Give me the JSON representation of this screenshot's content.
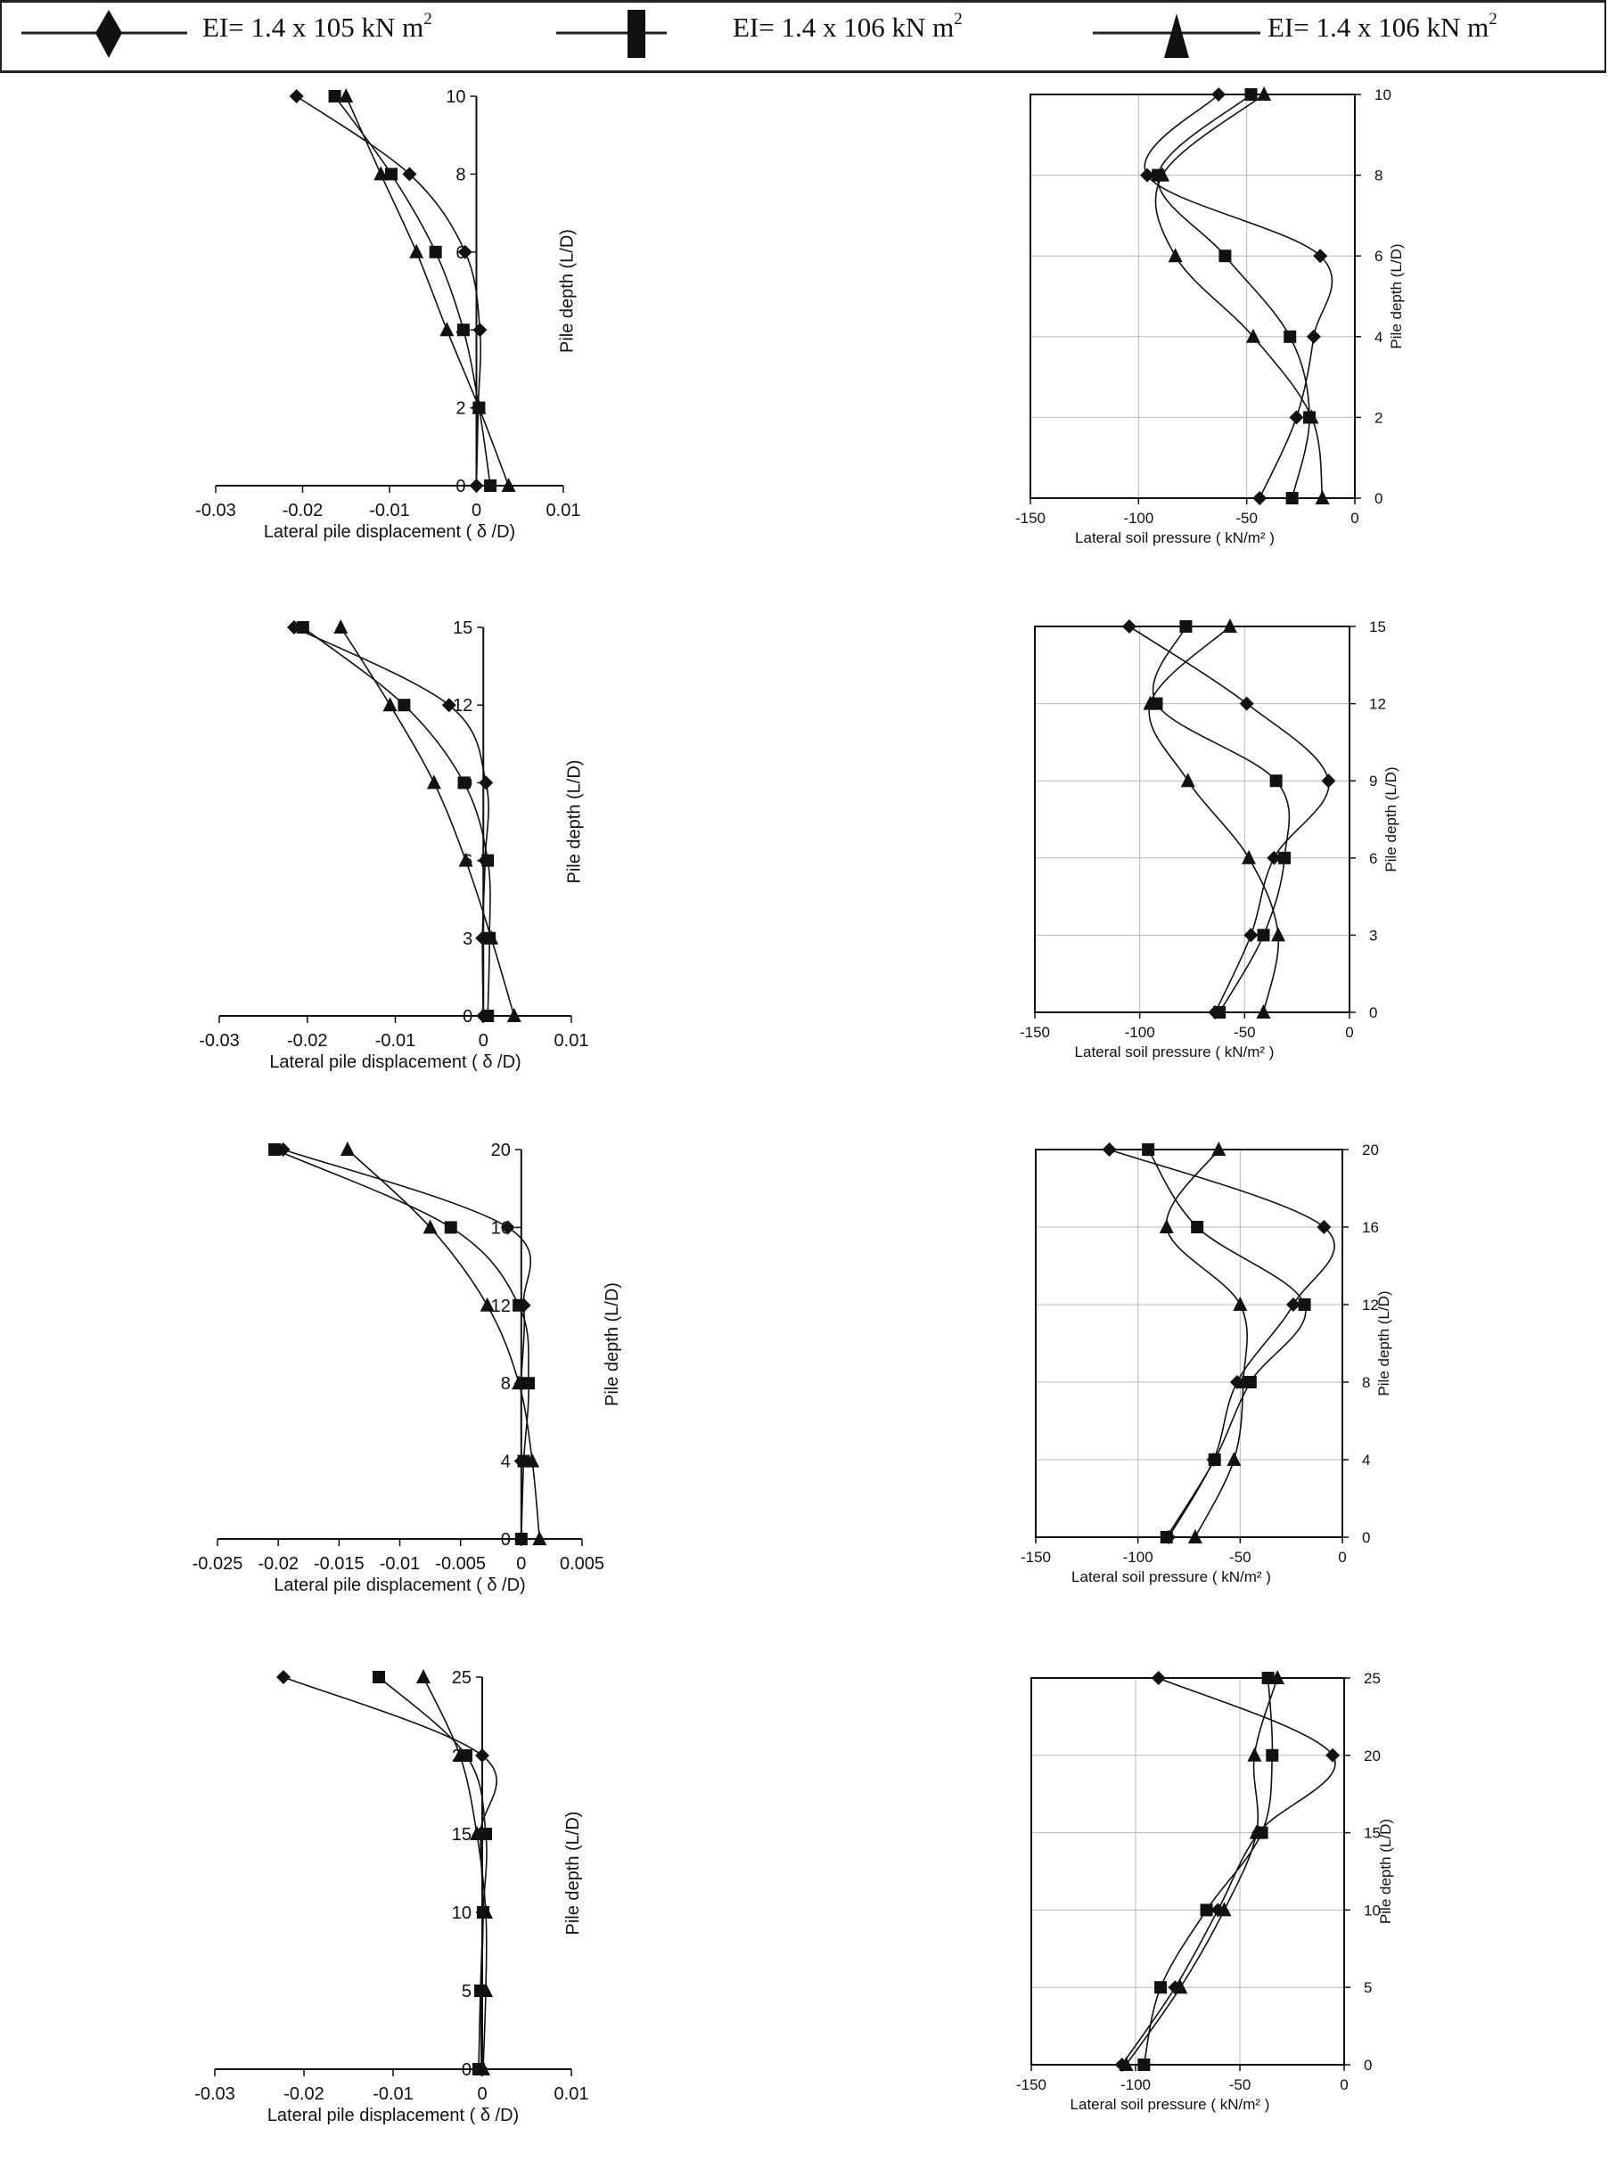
{
  "legend": {
    "items": [
      {
        "marker": "diamond",
        "label": "EI= 1.4 x 105 kN m",
        "sup": "2"
      },
      {
        "marker": "square",
        "label": "EI= 1.4 x 106 kN m",
        "sup": "2"
      },
      {
        "marker": "triangle",
        "label": "EI= 1.4 x 106 kN m",
        "sup": "2"
      }
    ]
  },
  "colors": {
    "line": "#111111",
    "grid": "#b8b8b8"
  },
  "chart_data": [
    {
      "type": "line",
      "xlabel": "Lateral pile displacement ( δ /D)",
      "ylabel": "Pile depth (L/D)",
      "xlim": [
        -0.03,
        0.01
      ],
      "ylim": [
        0,
        10
      ],
      "grid": false,
      "xticks": [
        "-0.03",
        "-0.02",
        "-0.01",
        "0",
        "0.01"
      ],
      "yticks": [
        "0",
        "2",
        "4",
        "6",
        "8",
        "10"
      ],
      "series": [
        {
          "name": "EI= 1.4 x 105 kN m2",
          "marker": "diamond",
          "points": [
            [
              -0.0207,
              10
            ],
            [
              -0.0077,
              8
            ],
            [
              -0.0013,
              6
            ],
            [
              0.0004,
              4
            ],
            [
              0.0002,
              2
            ],
            [
              0,
              0
            ]
          ]
        },
        {
          "name": "EI= 1.4 x 106 kN m2",
          "marker": "square",
          "points": [
            [
              -0.0163,
              10
            ],
            [
              -0.0098,
              8
            ],
            [
              -0.0047,
              6
            ],
            [
              -0.0015,
              4
            ],
            [
              0.0003,
              2
            ],
            [
              0.0016,
              0
            ]
          ]
        },
        {
          "name": "EI= 1.4 x 106 kN m2",
          "marker": "triangle",
          "points": [
            [
              -0.015,
              10
            ],
            [
              -0.011,
              8
            ],
            [
              -0.0069,
              6
            ],
            [
              -0.0034,
              4
            ],
            [
              0.0003,
              2
            ],
            [
              0.0037,
              0
            ]
          ]
        }
      ]
    },
    {
      "type": "line",
      "xlabel": "Lateral soil pressure ( kN/m² )",
      "ylabel": "Pile depth (L/D)",
      "xlim": [
        -150,
        0
      ],
      "ylim": [
        0,
        10
      ],
      "grid": true,
      "xticks": [
        "-150",
        "-100",
        "-50",
        "0"
      ],
      "yticks": [
        "0",
        "2",
        "4",
        "6",
        "8",
        "10"
      ],
      "series": [
        {
          "name": "EI= 1.4 x 105 kN m2",
          "marker": "diamond",
          "points": [
            [
              -63,
              10
            ],
            [
              -96,
              8
            ],
            [
              -16,
              6
            ],
            [
              -19,
              4
            ],
            [
              -27,
              2
            ],
            [
              -44,
              0
            ]
          ]
        },
        {
          "name": "EI= 1.4 x 106 kN m2",
          "marker": "square",
          "points": [
            [
              -48,
              10
            ],
            [
              -91,
              8
            ],
            [
              -60,
              6
            ],
            [
              -30,
              4
            ],
            [
              -21,
              2
            ],
            [
              -29,
              0
            ]
          ]
        },
        {
          "name": "EI= 1.4 x 106 kN m2",
          "marker": "triangle",
          "points": [
            [
              -42,
              10
            ],
            [
              -89,
              8
            ],
            [
              -83,
              6
            ],
            [
              -47,
              4
            ],
            [
              -20,
              2
            ],
            [
              -15,
              0
            ]
          ]
        }
      ]
    },
    {
      "type": "line",
      "xlabel": "Lateral pile displacement ( δ /D)",
      "ylabel": "Pile depth (L/D)",
      "xlim": [
        -0.03,
        0.01
      ],
      "ylim": [
        0,
        15
      ],
      "grid": false,
      "xticks": [
        "-0.03",
        "-0.02",
        "-0.01",
        "0",
        "0.01"
      ],
      "yticks": [
        "0",
        "3",
        "6",
        "9",
        "12",
        "15"
      ],
      "series": [
        {
          "name": "EI= 1.4 x 105 kN m2",
          "marker": "diamond",
          "points": [
            [
              -0.0215,
              15
            ],
            [
              -0.0039,
              12
            ],
            [
              0.0003,
              9
            ],
            [
              0.0002,
              6
            ],
            [
              -0.0001,
              3
            ],
            [
              0,
              0
            ]
          ]
        },
        {
          "name": "EI= 1.4 x 106 kN m2",
          "marker": "square",
          "points": [
            [
              -0.0205,
              15
            ],
            [
              -0.009,
              12
            ],
            [
              -0.0022,
              9
            ],
            [
              0.0005,
              6
            ],
            [
              0.0007,
              3
            ],
            [
              0.0005,
              0
            ]
          ]
        },
        {
          "name": "EI= 1.4 x 106 kN m2",
          "marker": "triangle",
          "points": [
            [
              -0.0162,
              15
            ],
            [
              -0.0106,
              12
            ],
            [
              -0.0056,
              9
            ],
            [
              -0.002,
              6
            ],
            [
              0.0009,
              3
            ],
            [
              0.0035,
              0
            ]
          ]
        }
      ]
    },
    {
      "type": "line",
      "xlabel": "Lateral soil pressure ( kN/m² )",
      "ylabel": "Pile depth (L/D)",
      "xlim": [
        -150,
        0
      ],
      "ylim": [
        0,
        15
      ],
      "grid": true,
      "xticks": [
        "-150",
        "-100",
        "-50",
        "0"
      ],
      "yticks": [
        "0",
        "3",
        "6",
        "9",
        "12",
        "15"
      ],
      "series": [
        {
          "name": "EI= 1.4 x 105 kN m2",
          "marker": "diamond",
          "points": [
            [
              -105,
              15
            ],
            [
              -49,
              12
            ],
            [
              -10,
              9
            ],
            [
              -36,
              6
            ],
            [
              -47,
              3
            ],
            [
              -64,
              0
            ]
          ]
        },
        {
          "name": "EI= 1.4 x 106 kN m2",
          "marker": "square",
          "points": [
            [
              -78,
              15
            ],
            [
              -92,
              12
            ],
            [
              -35,
              9
            ],
            [
              -31,
              6
            ],
            [
              -41,
              3
            ],
            [
              -62,
              0
            ]
          ]
        },
        {
          "name": "EI= 1.4 x 106 kN m2",
          "marker": "triangle",
          "points": [
            [
              -57,
              15
            ],
            [
              -95,
              12
            ],
            [
              -77,
              9
            ],
            [
              -48,
              6
            ],
            [
              -34,
              3
            ],
            [
              -41,
              0
            ]
          ]
        }
      ]
    },
    {
      "type": "line",
      "xlabel": "Lateral pile displacement ( δ /D)",
      "ylabel": "Pile depth (L/D)",
      "xlim": [
        -0.025,
        0.005
      ],
      "ylim": [
        0,
        20
      ],
      "grid": false,
      "xticks": [
        "-0.025",
        "-0.02",
        "-0.015",
        "-0.01",
        "-0.005",
        "0",
        "0.005"
      ],
      "yticks": [
        "0",
        "4",
        "8",
        "12",
        "16",
        "20"
      ],
      "series": [
        {
          "name": "EI= 1.4 x 105 kN m2",
          "marker": "diamond",
          "points": [
            [
              -0.0196,
              20
            ],
            [
              -0.0011,
              16
            ],
            [
              0.0002,
              12
            ],
            [
              0,
              8
            ],
            [
              0,
              4
            ],
            [
              0,
              0
            ]
          ]
        },
        {
          "name": "EI= 1.4 x 106 kN m2",
          "marker": "square",
          "points": [
            [
              -0.0203,
              20
            ],
            [
              -0.0058,
              16
            ],
            [
              -0.0002,
              12
            ],
            [
              0.0006,
              8
            ],
            [
              0.0002,
              4
            ],
            [
              0,
              0
            ]
          ]
        },
        {
          "name": "EI= 1.4 x 106 kN m2",
          "marker": "triangle",
          "points": [
            [
              -0.0143,
              20
            ],
            [
              -0.0075,
              16
            ],
            [
              -0.0028,
              12
            ],
            [
              -0.0002,
              8
            ],
            [
              0.0009,
              4
            ],
            [
              0.0015,
              0
            ]
          ]
        }
      ]
    },
    {
      "type": "line",
      "xlabel": "Lateral soil pressure ( kN/m² )",
      "ylabel": "Pile depth (L/D)",
      "xlim": [
        -150,
        0
      ],
      "ylim": [
        0,
        20
      ],
      "grid": true,
      "xticks": [
        "-150",
        "-100",
        "-50",
        "0"
      ],
      "yticks": [
        "0",
        "4",
        "8",
        "12",
        "16",
        "20"
      ],
      "series": [
        {
          "name": "EI= 1.4 x 105 kN m2",
          "marker": "diamond",
          "points": [
            [
              -114,
              20
            ],
            [
              -9,
              16
            ],
            [
              -24,
              12
            ],
            [
              -51.5,
              8
            ],
            [
              -63,
              4
            ],
            [
              -85,
              0
            ]
          ]
        },
        {
          "name": "EI= 1.4 x 106 kN m2",
          "marker": "square",
          "points": [
            [
              -95,
              20
            ],
            [
              -71,
              16
            ],
            [
              -18.5,
              12
            ],
            [
              -45,
              8
            ],
            [
              -62.5,
              4
            ],
            [
              -86,
              0
            ]
          ]
        },
        {
          "name": "EI= 1.4 x 106 kN m2",
          "marker": "triangle",
          "points": [
            [
              -60.5,
              20
            ],
            [
              -86,
              16
            ],
            [
              -50,
              12
            ],
            [
              -48.5,
              8
            ],
            [
              -53,
              4
            ],
            [
              -72,
              0
            ]
          ]
        }
      ]
    },
    {
      "type": "line",
      "xlabel": "Lateral pile displacement ( δ /D)",
      "ylabel": "Pile depth (L/D)",
      "xlim": [
        -0.03,
        0.01
      ],
      "ylim": [
        0,
        25
      ],
      "grid": false,
      "xticks": [
        "-0.03",
        "-0.02",
        "-0.01",
        "0",
        "0.01"
      ],
      "yticks": [
        "0",
        "5",
        "10",
        "15",
        "20",
        "25"
      ],
      "series": [
        {
          "name": "EI= 1.4 x 105 kN m2",
          "marker": "diamond",
          "points": [
            [
              -0.0223,
              25
            ],
            [
              0,
              20
            ],
            [
              -0.0002,
              15
            ],
            [
              0.0001,
              10
            ],
            [
              -0.0001,
              5
            ],
            [
              -0.0001,
              0
            ]
          ]
        },
        {
          "name": "EI= 1.4 x 106 kN m2",
          "marker": "square",
          "points": [
            [
              -0.0116,
              25
            ],
            [
              -0.0018,
              20
            ],
            [
              0.0004,
              15
            ],
            [
              0.0001,
              10
            ],
            [
              -0.0002,
              5
            ],
            [
              -0.0004,
              0
            ]
          ]
        },
        {
          "name": "EI= 1.4 x 106 kN m2",
          "marker": "triangle",
          "points": [
            [
              -0.0066,
              25
            ],
            [
              -0.0025,
              20
            ],
            [
              -0.0006,
              15
            ],
            [
              0.0004,
              10
            ],
            [
              0.0004,
              5
            ],
            [
              0.0001,
              0
            ]
          ]
        }
      ]
    },
    {
      "type": "line",
      "xlabel": "Lateral soil pressure ( kN/m² )",
      "ylabel": "Pile depth (L/D)",
      "xlim": [
        -150,
        0
      ],
      "ylim": [
        0,
        25
      ],
      "grid": true,
      "xticks": [
        "-150",
        "-100",
        "-50",
        "0"
      ],
      "yticks": [
        "0",
        "5",
        "10",
        "15",
        "20",
        "25"
      ],
      "series": [
        {
          "name": "EI= 1.4 x 105 kN m2",
          "marker": "diamond",
          "points": [
            [
              -89,
              25
            ],
            [
              -5.5,
              20
            ],
            [
              -41,
              15
            ],
            [
              -60.5,
              10
            ],
            [
              -81,
              5
            ],
            [
              -106.5,
              0
            ]
          ]
        },
        {
          "name": "EI= 1.4 x 106 kN m2",
          "marker": "square",
          "points": [
            [
              -36.5,
              25
            ],
            [
              -34.5,
              20
            ],
            [
              -39.5,
              15
            ],
            [
              -66,
              10
            ],
            [
              -88,
              5
            ],
            [
              -96,
              0
            ]
          ]
        },
        {
          "name": "EI= 1.4 x 106 kN m2",
          "marker": "triangle",
          "points": [
            [
              -32,
              25
            ],
            [
              -43,
              20
            ],
            [
              -42,
              15
            ],
            [
              -57.5,
              10
            ],
            [
              -78.5,
              5
            ],
            [
              -104.5,
              0
            ]
          ]
        }
      ]
    }
  ]
}
